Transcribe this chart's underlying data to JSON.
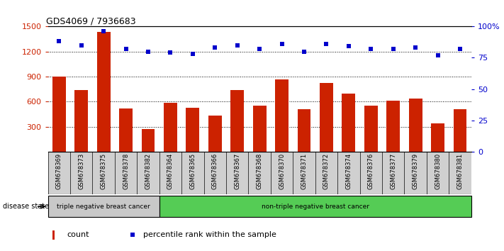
{
  "title": "GDS4069 / 7936683",
  "samples": [
    "GSM678369",
    "GSM678373",
    "GSM678375",
    "GSM678378",
    "GSM678382",
    "GSM678364",
    "GSM678365",
    "GSM678366",
    "GSM678367",
    "GSM678368",
    "GSM678370",
    "GSM678371",
    "GSM678372",
    "GSM678374",
    "GSM678376",
    "GSM678377",
    "GSM678379",
    "GSM678380",
    "GSM678381"
  ],
  "counts": [
    900,
    740,
    1430,
    520,
    270,
    590,
    530,
    430,
    740,
    550,
    870,
    510,
    820,
    700,
    555,
    610,
    640,
    340,
    510
  ],
  "percentiles": [
    88,
    85,
    96,
    82,
    80,
    79,
    78,
    83,
    85,
    82,
    86,
    80,
    86,
    84,
    82,
    82,
    83,
    77,
    82
  ],
  "group1_label": "triple negative breast cancer",
  "group1_count": 5,
  "group2_label": "non-triple negative breast cancer",
  "group2_count": 14,
  "group1_color": "#c8c8c8",
  "group2_color": "#55cc55",
  "bar_color": "#cc2200",
  "dot_color": "#0000cc",
  "ylim_left": [
    0,
    1500
  ],
  "ylim_right": [
    0,
    100
  ],
  "yticks_left": [
    300,
    600,
    900,
    1200,
    1500
  ],
  "yticks_right": [
    0,
    25,
    50,
    75,
    100
  ],
  "legend_count_label": "count",
  "legend_percentile_label": "percentile rank within the sample",
  "disease_state_label": "disease state",
  "bg_color": "#ffffff",
  "tick_area_color": "#d0d0d0"
}
